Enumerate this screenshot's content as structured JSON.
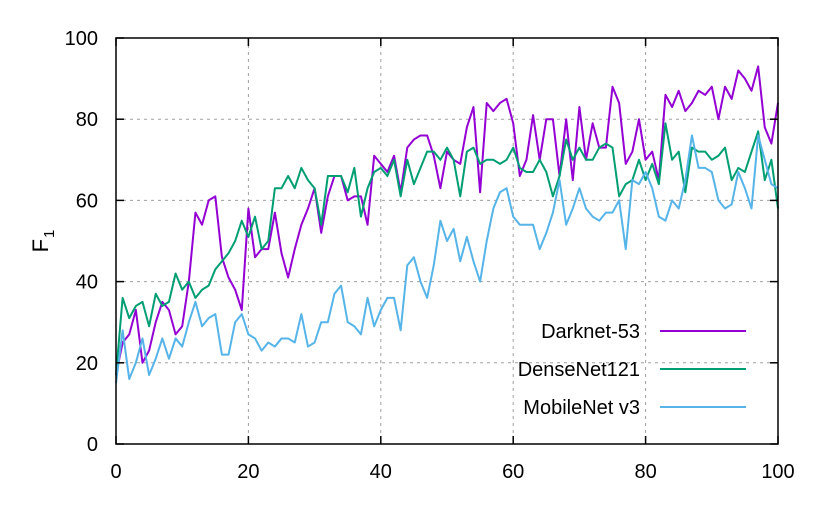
{
  "chart_data": {
    "type": "line",
    "title": "",
    "xlabel": "",
    "ylabel": "F",
    "ylabel_subscript": "1",
    "xlim": [
      0,
      100
    ],
    "ylim": [
      0,
      100
    ],
    "x_ticks": [
      0,
      20,
      40,
      60,
      80,
      100
    ],
    "y_ticks": [
      0,
      20,
      40,
      60,
      80,
      100
    ],
    "grid": true,
    "legend_position": "bottom-right",
    "series": [
      {
        "name": "Darknet-53",
        "color": "#9400d3",
        "values": [
          17,
          25,
          27,
          33,
          20,
          23,
          30,
          35,
          33,
          27,
          29,
          40,
          57,
          54,
          60,
          61,
          46,
          41,
          38,
          33,
          58,
          46,
          48,
          48,
          57,
          47,
          41,
          48,
          54,
          58,
          63,
          52,
          61,
          66,
          66,
          60,
          61,
          61,
          54,
          71,
          69,
          67,
          71,
          62,
          73,
          75,
          76,
          76,
          71,
          63,
          72,
          70,
          69,
          78,
          83,
          62,
          84,
          82,
          84,
          85,
          79,
          66,
          70,
          81,
          70,
          80,
          80,
          66,
          80,
          65,
          83,
          70,
          79,
          73,
          73,
          88,
          84,
          69,
          72,
          80,
          70,
          72,
          65,
          86,
          83,
          87,
          82,
          84,
          87,
          86,
          88,
          80,
          88,
          85,
          92,
          90,
          87,
          93,
          78,
          74,
          84
        ]
      },
      {
        "name": "DenseNet121",
        "color": "#009e73",
        "values": [
          17,
          36,
          31,
          34,
          35,
          29,
          37,
          34,
          35,
          42,
          38,
          40,
          36,
          38,
          39,
          43,
          45,
          47,
          50,
          55,
          51,
          56,
          48,
          50,
          63,
          63,
          66,
          63,
          68,
          65,
          63,
          54,
          66,
          66,
          66,
          62,
          68,
          56,
          63,
          67,
          68,
          66,
          70,
          61,
          70,
          64,
          68,
          72,
          72,
          70,
          73,
          70,
          61,
          72,
          73,
          69,
          70,
          70,
          69,
          70,
          73,
          68,
          67,
          67,
          70,
          67,
          61,
          66,
          75,
          70,
          73,
          70,
          70,
          73,
          74,
          73,
          61,
          64,
          65,
          70,
          65,
          69,
          64,
          79,
          70,
          72,
          62,
          73,
          72,
          72,
          70,
          71,
          73,
          65,
          68,
          67,
          72,
          77,
          65,
          70,
          58
        ]
      },
      {
        "name": "MobileNet v3",
        "color": "#56b4e9",
        "values": [
          15,
          28,
          16,
          20,
          26,
          17,
          21,
          26,
          21,
          26,
          24,
          30,
          35,
          29,
          31,
          32,
          22,
          22,
          30,
          32,
          27,
          26,
          23,
          25,
          24,
          26,
          26,
          25,
          32,
          24,
          25,
          30,
          30,
          37,
          39,
          30,
          29,
          27,
          36,
          29,
          33,
          36,
          36,
          28,
          44,
          46,
          40,
          36,
          44,
          55,
          50,
          53,
          45,
          51,
          45,
          40,
          50,
          58,
          62,
          63,
          56,
          54,
          54,
          54,
          48,
          52,
          57,
          65,
          54,
          58,
          63,
          58,
          56,
          55,
          57,
          57,
          60,
          48,
          65,
          64,
          67,
          63,
          56,
          55,
          60,
          58,
          65,
          76,
          68,
          68,
          67,
          60,
          58,
          59,
          67,
          63,
          58,
          76,
          70,
          64,
          63
        ]
      }
    ]
  }
}
